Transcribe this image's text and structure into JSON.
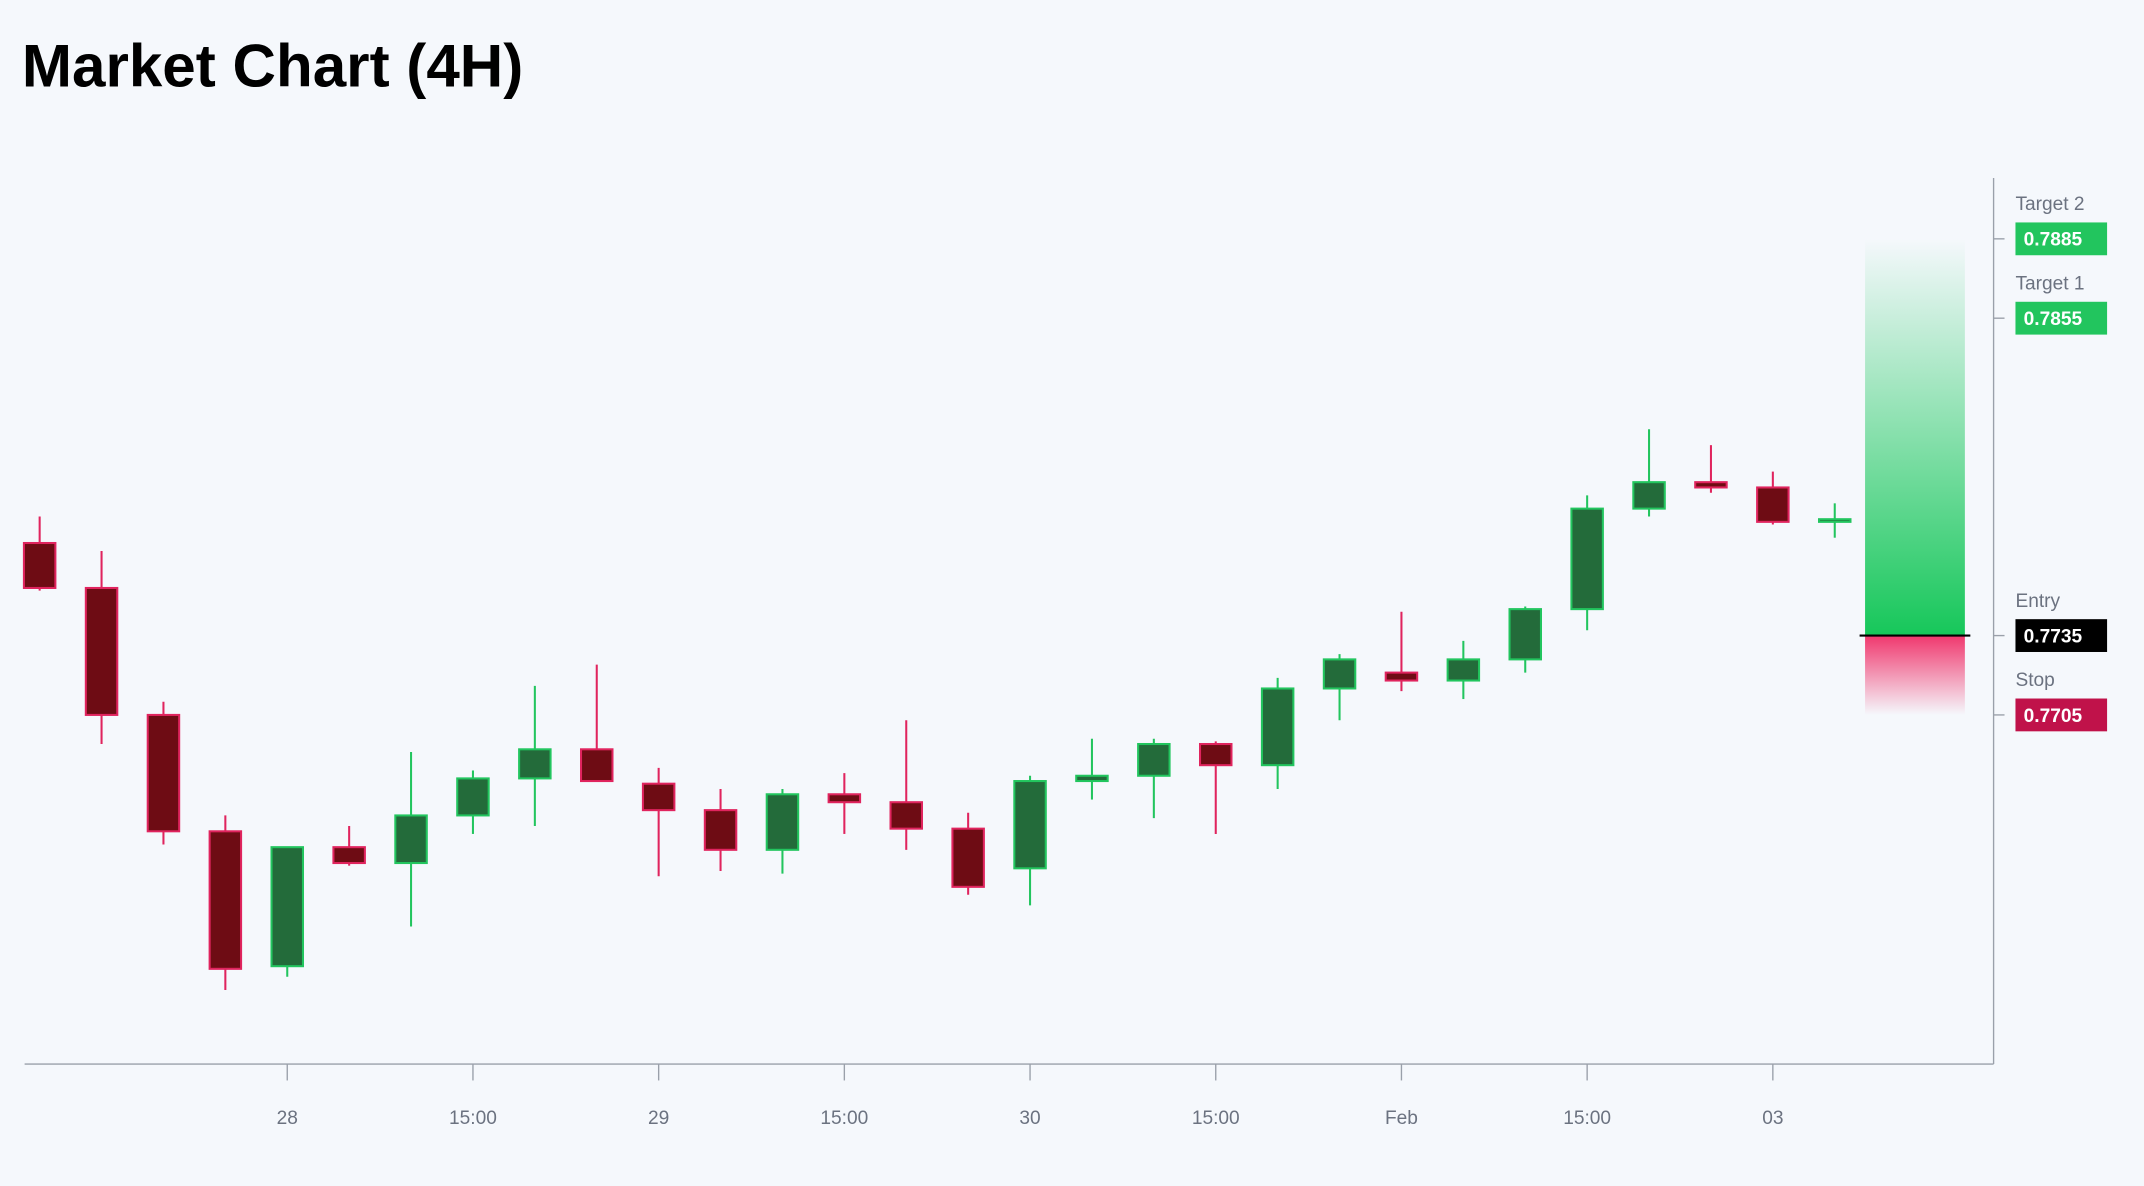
{
  "chart_data": {
    "type": "candlestick",
    "title": "Market Chart (4H)",
    "categories": [
      null,
      null,
      null,
      null,
      "28",
      null,
      null,
      "15:00",
      null,
      null,
      "29",
      null,
      null,
      "15:00",
      null,
      null,
      "30",
      null,
      null,
      "15:00",
      null,
      null,
      "Feb",
      null,
      null,
      "15:00",
      null,
      null,
      "03",
      null
    ],
    "open": [
      0.777,
      0.7753,
      0.7705,
      0.7661,
      0.761,
      0.7655,
      0.7649,
      0.7667,
      0.7681,
      0.7692,
      0.7679,
      0.7669,
      0.7654,
      0.7675,
      0.7672,
      0.7662,
      0.7647,
      0.768,
      0.7682,
      0.7694,
      0.7686,
      0.7715,
      0.7721,
      0.7718,
      0.7726,
      0.7745,
      0.7783,
      0.7793,
      0.7791,
      0.7778
    ],
    "high": [
      0.778,
      0.7767,
      0.771,
      0.7667,
      0.7655,
      0.7663,
      0.7691,
      0.7684,
      0.7716,
      0.7724,
      0.7685,
      0.7677,
      0.7677,
      0.7683,
      0.7703,
      0.7668,
      0.7682,
      0.7696,
      0.7696,
      0.7695,
      0.7719,
      0.7728,
      0.7744,
      0.7733,
      0.7746,
      0.7788,
      0.7813,
      0.7807,
      0.7797,
      0.7785
    ],
    "low": [
      0.7752,
      0.7694,
      0.7656,
      0.7601,
      0.7606,
      0.7648,
      0.7625,
      0.766,
      0.7663,
      0.768,
      0.7644,
      0.7646,
      0.7645,
      0.766,
      0.7654,
      0.7637,
      0.7633,
      0.7673,
      0.7666,
      0.766,
      0.7677,
      0.7703,
      0.7714,
      0.7711,
      0.7721,
      0.7737,
      0.778,
      0.7789,
      0.7777,
      0.7772
    ],
    "close": [
      0.7753,
      0.7705,
      0.7661,
      0.7609,
      0.7655,
      0.7649,
      0.7667,
      0.7681,
      0.7692,
      0.768,
      0.7669,
      0.7654,
      0.7675,
      0.7672,
      0.7662,
      0.764,
      0.768,
      0.7682,
      0.7694,
      0.7686,
      0.7715,
      0.7726,
      0.7718,
      0.7726,
      0.7745,
      0.7783,
      0.7793,
      0.7791,
      0.7778,
      0.7779
    ],
    "up_color": "#22c55e",
    "up_fill": "#236b3a",
    "down_color": "#e0245e",
    "down_fill": "#6e0c14",
    "ylim": [
      0.7573,
      0.7908
    ],
    "levels": [
      {
        "name": "Target 2",
        "value": 0.7885,
        "color": "#22c55e"
      },
      {
        "name": "Target 1",
        "value": 0.7855,
        "color": "#22c55e"
      },
      {
        "name": "Entry",
        "value": 0.7735,
        "color": "#000000"
      },
      {
        "name": "Stop",
        "value": 0.7705,
        "color": "#c0124a"
      }
    ]
  }
}
